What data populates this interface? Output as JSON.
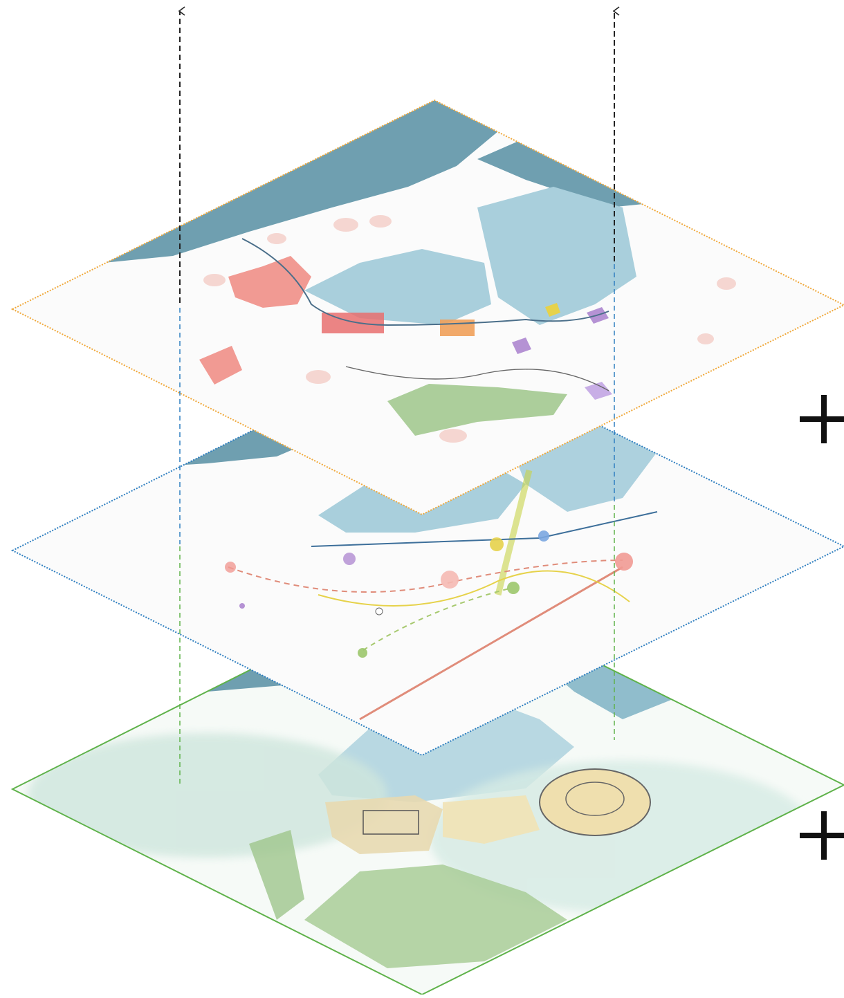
{
  "diagram": {
    "type": "exploded-axonometric-layer-stack",
    "layers": [
      {
        "role": "top-plan-layer",
        "border_color": "#f0a83a",
        "border_style": "dotted"
      },
      {
        "role": "middle-network-layer",
        "border_color": "#2f7fc0",
        "border_style": "dotted"
      },
      {
        "role": "base-landscape-layer",
        "border_color": "#5fb24a",
        "border_style": "solid"
      }
    ],
    "operators": [
      "+",
      "+"
    ],
    "colors": {
      "sea": "#6f9fb0",
      "bay": "#a9cfdc",
      "built_red": "#f19a93",
      "built_pink": "#f5d6d1",
      "forest": "#9dc58a",
      "purple": "#b592d4",
      "yellow": "#e6d24a",
      "orange": "#f0a05a",
      "projection_line": "#333333"
    }
  }
}
